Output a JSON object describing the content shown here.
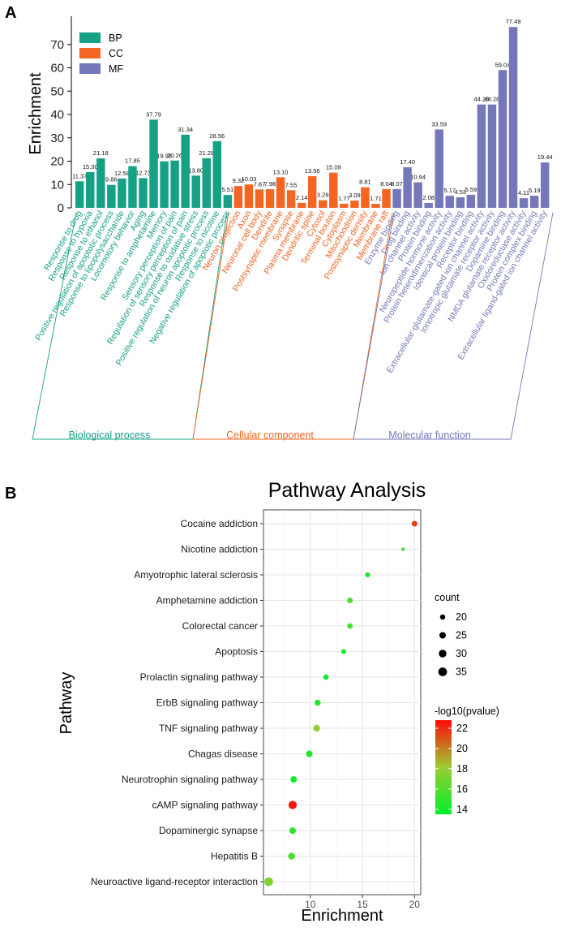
{
  "chart_data": [
    {
      "panel": "A",
      "type": "bar",
      "ylabel": "Enrichment",
      "ylim": [
        0,
        80
      ],
      "yticks": [
        0,
        10,
        20,
        30,
        40,
        50,
        60,
        70
      ],
      "legend": [
        {
          "key": "BP",
          "label": "BP",
          "color": "#16a085"
        },
        {
          "key": "CC",
          "label": "CC",
          "color": "#f26522"
        },
        {
          "key": "MF",
          "label": "MF",
          "color": "#7478b8"
        }
      ],
      "categories": [
        {
          "key": "BP",
          "label": "Biological process"
        },
        {
          "key": "CC",
          "label": "Cellular component"
        },
        {
          "key": "MF",
          "label": "Molecular function"
        }
      ],
      "bars": [
        {
          "term": "Response to drug",
          "value": 11.37,
          "label": "11.37",
          "group": "BP"
        },
        {
          "term": "Response to hypoxia",
          "value": 15.3,
          "label": "15.30",
          "group": "BP"
        },
        {
          "term": "Response to ethanol",
          "value": 21.18,
          "label": "21.18",
          "group": "BP"
        },
        {
          "term": "Positive regulation of apoptotic process",
          "value": 9.86,
          "label": "9.86",
          "group": "BP"
        },
        {
          "term": "Response to lipopolysaccharide",
          "value": 12.58,
          "label": "12.58",
          "group": "BP"
        },
        {
          "term": "Locomotory behavior",
          "value": 17.85,
          "label": "17.85",
          "group": "BP"
        },
        {
          "term": "Aging",
          "value": 12.73,
          "label": "12.73",
          "group": "BP"
        },
        {
          "term": "Response to amphetamine",
          "value": 37.79,
          "label": "37.79",
          "group": "BP"
        },
        {
          "term": "Memory",
          "value": 19.93,
          "label": "19.93",
          "group": "BP"
        },
        {
          "term": "Sensory perception of pain",
          "value": 20.26,
          "label": "20.26",
          "group": "BP"
        },
        {
          "term": "Regulation of sensory perception of pain",
          "value": 31.34,
          "label": "31.34",
          "group": "BP"
        },
        {
          "term": "Response to oxidative stress",
          "value": 13.8,
          "label": "13.80",
          "group": "BP"
        },
        {
          "term": "Positive regulation of neuron apoptotic process",
          "value": 21.28,
          "label": "21.28",
          "group": "BP"
        },
        {
          "term": "Response to nicotine",
          "value": 28.56,
          "label": "28.56",
          "group": "BP"
        },
        {
          "term": "Negative regulation of apoptotic process",
          "value": 5.51,
          "label": "5.51",
          "group": "BP"
        },
        {
          "term": "Neuron projection",
          "value": 9.32,
          "label": "9.32",
          "group": "CC"
        },
        {
          "term": "Axon",
          "value": 10.03,
          "label": "10.03",
          "group": "CC"
        },
        {
          "term": "Neuronal cell body",
          "value": 7.87,
          "label": "7.87",
          "group": "CC"
        },
        {
          "term": "Dendrite",
          "value": 7.98,
          "label": "7.98",
          "group": "CC"
        },
        {
          "term": "Postsynaptic membrane",
          "value": 13.1,
          "label": "13.10",
          "group": "CC"
        },
        {
          "term": "Synapse",
          "value": 7.55,
          "label": "7.55",
          "group": "CC"
        },
        {
          "term": "Plasma membrane",
          "value": 2.14,
          "label": "2.14",
          "group": "CC"
        },
        {
          "term": "Dendritic spine",
          "value": 13.56,
          "label": "13.56",
          "group": "CC"
        },
        {
          "term": "Cytosol",
          "value": 3.26,
          "label": "3.26",
          "group": "CC"
        },
        {
          "term": "Terminal bouton",
          "value": 15.09,
          "label": "15.09",
          "group": "CC"
        },
        {
          "term": "Cytoplasm",
          "value": 1.77,
          "label": "1.77",
          "group": "CC"
        },
        {
          "term": "Mitochondrion",
          "value": 3.09,
          "label": "3.09",
          "group": "CC"
        },
        {
          "term": "Postsynaptic density",
          "value": 8.81,
          "label": "8.81",
          "group": "CC"
        },
        {
          "term": "Membrane",
          "value": 1.71,
          "label": "1.71",
          "group": "CC"
        },
        {
          "term": "Membrane raft",
          "value": 8.04,
          "label": "8.04",
          "group": "CC"
        },
        {
          "term": "Enzyme binding",
          "value": 8.07,
          "label": "8.07",
          "group": "MF"
        },
        {
          "term": "Drug binding",
          "value": 17.4,
          "label": "17.40",
          "group": "MF"
        },
        {
          "term": "Ion channel activity",
          "value": 10.94,
          "label": "10.94",
          "group": "MF"
        },
        {
          "term": "Protein binding",
          "value": 2.08,
          "label": "2.08",
          "group": "MF"
        },
        {
          "term": "Neuropeptide hormone activity",
          "value": 33.59,
          "label": "33.59",
          "group": "MF"
        },
        {
          "term": "Protein heterodimerization activity",
          "value": 5.17,
          "label": "5.17",
          "group": "MF"
        },
        {
          "term": "Identical protein binding",
          "value": 4.53,
          "label": "4.53",
          "group": "MF"
        },
        {
          "term": "Receptor binding",
          "value": 5.59,
          "label": "5.59",
          "group": "MF"
        },
        {
          "term": "Extracellular-glutamate-gated ion channel activity",
          "value": 44.28,
          "label": "44.28",
          "group": "MF"
        },
        {
          "term": "Ionotropic glutamate receptor activity",
          "value": 44.28,
          "label": "44.28",
          "group": "MF"
        },
        {
          "term": "Dopamine binding",
          "value": 59.04,
          "label": "59.04",
          "group": "MF"
        },
        {
          "term": "NMDA glutamate receptor activity",
          "value": 77.49,
          "label": "77.49",
          "group": "MF"
        },
        {
          "term": "Oxidoreductase activity",
          "value": 4.11,
          "label": "4.11",
          "group": "MF"
        },
        {
          "term": "Protein complex binding",
          "value": 5.19,
          "label": "5.19",
          "group": "MF"
        },
        {
          "term": "Extracellular ligand-gated ion channel activity",
          "value": 19.44,
          "label": "19.44",
          "group": "MF"
        }
      ]
    },
    {
      "panel": "B",
      "type": "scatter",
      "title": "Pathway Analysis",
      "xlabel": "Enrichment",
      "ylabel": "Pathway",
      "xlim": [
        5.5,
        20.6
      ],
      "xticks": [
        10,
        15,
        20
      ],
      "count_legend": {
        "title": "count",
        "values": [
          20,
          25,
          30,
          35
        ]
      },
      "color_legend": {
        "title": "-log10(pvalue)",
        "range": [
          13.5,
          22.8
        ],
        "ticks": [
          14,
          16,
          18,
          20,
          22
        ],
        "low_color": "#00ee2a",
        "mid_color": "#9acd32",
        "high_color": "#ff0a0a"
      },
      "points": [
        {
          "pathway": "Cocaine addiction",
          "enrichment": 20.0,
          "count": 22,
          "neglog10p": 21.6
        },
        {
          "pathway": "Nicotine addiction",
          "enrichment": 18.9,
          "count": 14,
          "neglog10p": 15.2
        },
        {
          "pathway": "Amyotrophic lateral sclerosis",
          "enrichment": 15.5,
          "count": 19,
          "neglog10p": 14.5
        },
        {
          "pathway": "Amphetamine addiction",
          "enrichment": 13.8,
          "count": 22,
          "neglog10p": 16.0
        },
        {
          "pathway": "Colorectal cancer",
          "enrichment": 13.8,
          "count": 21,
          "neglog10p": 15.4
        },
        {
          "pathway": "Apoptosis",
          "enrichment": 13.2,
          "count": 19,
          "neglog10p": 14.3
        },
        {
          "pathway": "Prolactin signaling pathway",
          "enrichment": 11.5,
          "count": 21,
          "neglog10p": 14.2
        },
        {
          "pathway": "ErbB signaling pathway",
          "enrichment": 10.7,
          "count": 23,
          "neglog10p": 14.4
        },
        {
          "pathway": "TNF signaling pathway",
          "enrichment": 10.6,
          "count": 26,
          "neglog10p": 17.8
        },
        {
          "pathway": "Chagas disease",
          "enrichment": 9.9,
          "count": 25,
          "neglog10p": 14.5
        },
        {
          "pathway": "Neurotrophin signaling pathway",
          "enrichment": 8.4,
          "count": 25,
          "neglog10p": 14.3
        },
        {
          "pathway": "cAMP signaling pathway",
          "enrichment": 8.3,
          "count": 33,
          "neglog10p": 22.5
        },
        {
          "pathway": "Dopaminergic synapse",
          "enrichment": 8.3,
          "count": 25,
          "neglog10p": 14.6
        },
        {
          "pathway": "Hepatitis B",
          "enrichment": 8.2,
          "count": 27,
          "neglog10p": 15.9
        },
        {
          "pathway": "Neuroactive ligand-receptor interaction",
          "enrichment": 6.0,
          "count": 35,
          "neglog10p": 17.4
        }
      ]
    }
  ]
}
